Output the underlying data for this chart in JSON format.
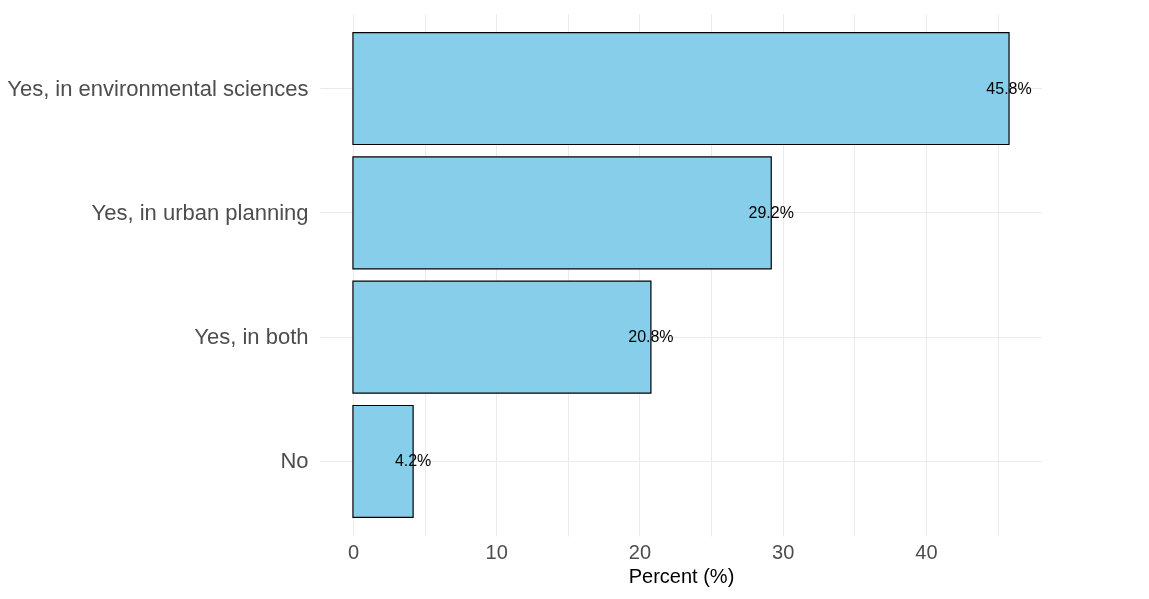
{
  "chart_data": {
    "type": "bar",
    "orientation": "horizontal",
    "xlabel": "Percent (%)",
    "categories": [
      "Yes, in environmental sciences",
      "Yes, in urban planning",
      "Yes, in both",
      "No"
    ],
    "values": [
      45.8,
      29.2,
      20.8,
      4.2
    ],
    "value_labels": [
      "45.8%",
      "29.2%",
      "20.8%",
      "4.2%"
    ],
    "color": "#87ceeb",
    "xlim": [
      -2.3,
      48.1
    ],
    "xticks": [
      0,
      {
        "value": 5,
        "label": null
      },
      10,
      {
        "value": 15,
        "label": null
      },
      20,
      {
        "value": 25,
        "label": null
      },
      30,
      {
        "value": 35,
        "label": null
      },
      40,
      {
        "value": 45,
        "label": null
      }
    ],
    "grid": true
  }
}
